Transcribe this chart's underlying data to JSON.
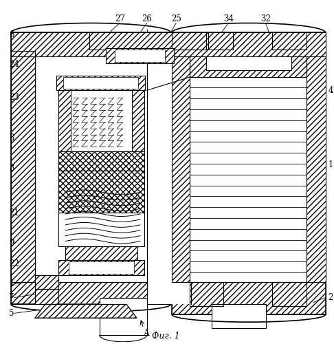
{
  "title": "Фиг. 1",
  "bg_color": "#ffffff",
  "line_color": "#000000",
  "fig_width": 4.86,
  "fig_height": 5.0,
  "dpi": 100
}
